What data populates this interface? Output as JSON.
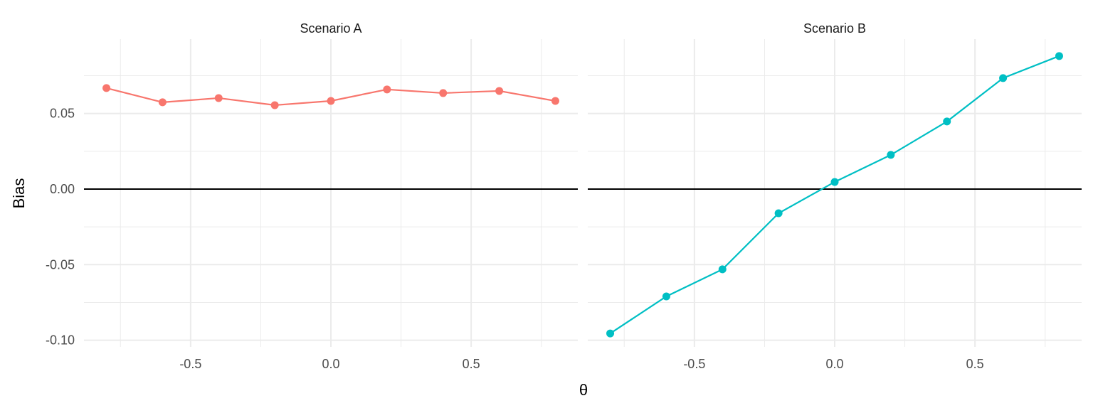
{
  "chart_data": {
    "type": "line",
    "xlabel": "θ",
    "ylabel": "Bias",
    "xlim": [
      -0.88,
      0.88
    ],
    "ylim": [
      -0.1044,
      0.0992
    ],
    "x_ticks": [
      -0.5,
      0.0,
      0.5
    ],
    "x_tick_labels": [
      "-0.5",
      "0.0",
      "0.5"
    ],
    "y_ticks": [
      -0.1,
      -0.05,
      0.0,
      0.05
    ],
    "y_tick_labels": [
      "-0.10",
      "-0.05",
      "0.00",
      "0.05"
    ],
    "grid": true,
    "reference_line": {
      "y": 0,
      "color": "#000000"
    },
    "legend": "none",
    "panels": [
      {
        "title": "Scenario A",
        "color": "#F8766D",
        "x": [
          -0.8,
          -0.6,
          -0.4,
          -0.2,
          0.0,
          0.2,
          0.4,
          0.6,
          0.8
        ],
        "y": [
          0.0668,
          0.0574,
          0.0602,
          0.0555,
          0.0583,
          0.0659,
          0.0635,
          0.0649,
          0.0583
        ]
      },
      {
        "title": "Scenario B",
        "color": "#00BFC4",
        "x": [
          -0.8,
          -0.6,
          -0.4,
          -0.2,
          0.0,
          0.2,
          0.4,
          0.6,
          0.8
        ],
        "y": [
          -0.0955,
          -0.071,
          -0.0531,
          -0.016,
          0.0047,
          0.0226,
          0.0447,
          0.0734,
          0.088
        ]
      }
    ]
  }
}
